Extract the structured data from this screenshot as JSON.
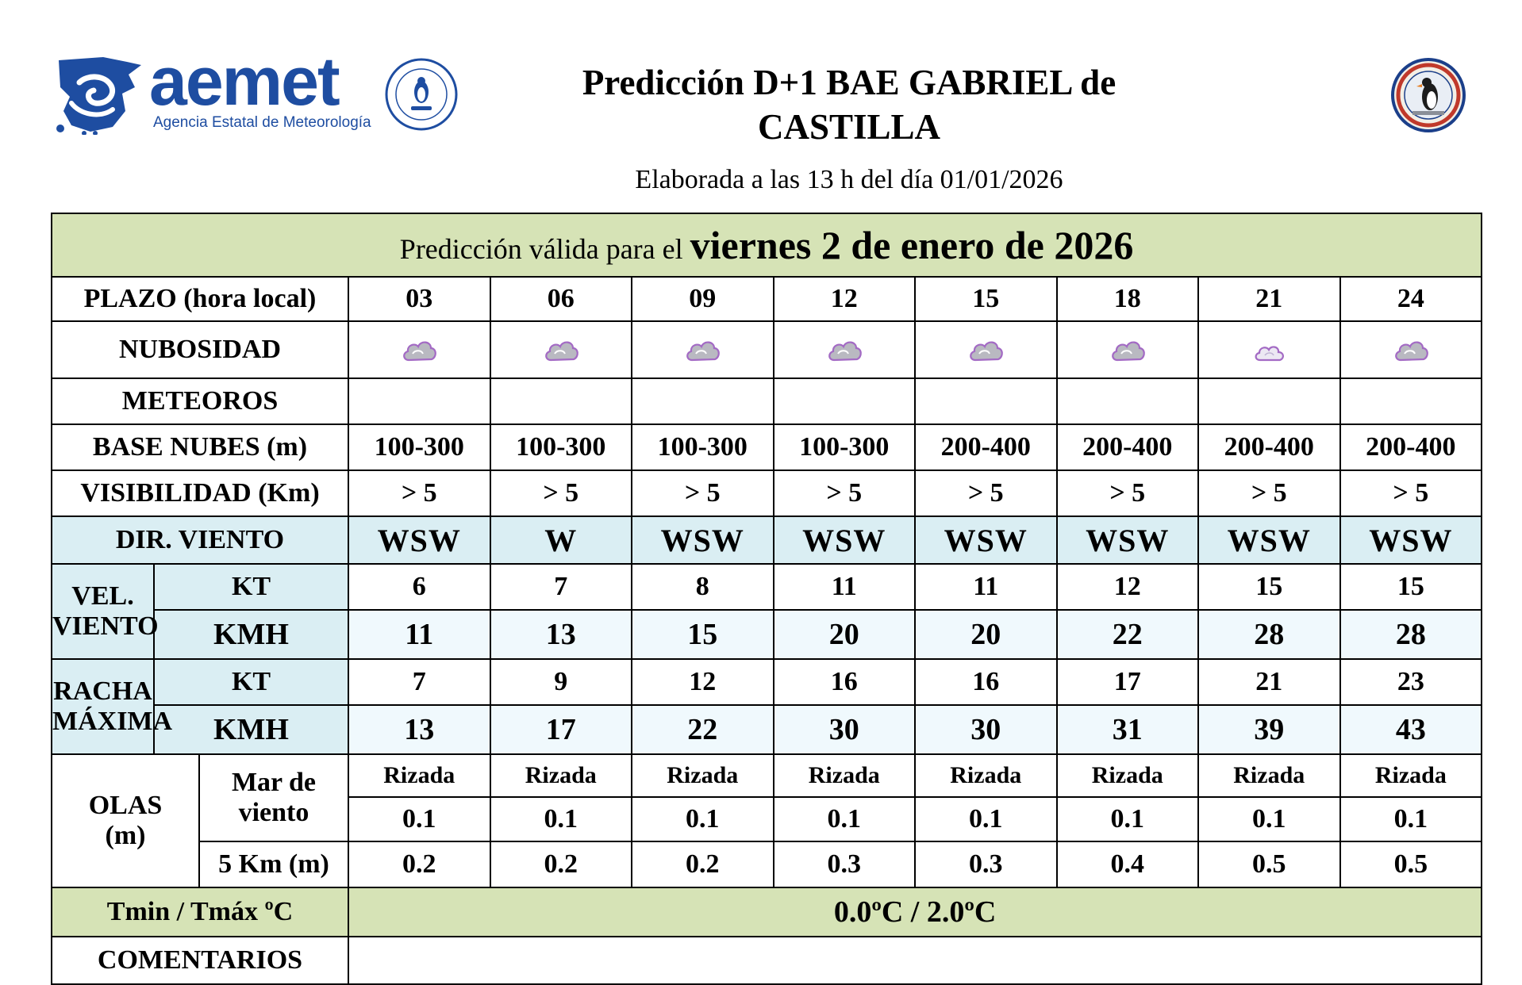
{
  "header": {
    "logo_text": "aemet",
    "logo_subtitle": "Agencia Estatal de Meteorología",
    "title": "Predicción D+1 BAE GABRIEL de CASTILLA",
    "subtitle": "Elaborada a las 13 h del día 01/01/2026"
  },
  "forecast": {
    "valid_prefix": "Predicción válida para el",
    "valid_date": "viernes 2 de enero de 2026",
    "labels": {
      "plazo": "PLAZO (hora local)",
      "nubosidad": "NUBOSIDAD",
      "meteoros": "METEOROS",
      "base_nubes": "BASE NUBES (m)",
      "visibilidad": "VISIBILIDAD (Km)",
      "dir_viento": "DIR. VIENTO",
      "vel_viento_1": "VEL.",
      "vel_viento_2": "VIENTO",
      "racha_1": "RACHA",
      "racha_2": "MÁXIMA",
      "unit_kt": "KT",
      "unit_kmh": "KMH",
      "olas_1": "OLAS",
      "olas_2": "(m)",
      "mar_viento": "Mar de viento",
      "cinco_km": "5 Km (m)",
      "temp": "Tmin / Tmáx ºC",
      "comentarios": "COMENTARIOS"
    },
    "hours": [
      "03",
      "06",
      "09",
      "12",
      "15",
      "18",
      "21",
      "24"
    ],
    "cloud_icons": [
      "cloudy-icon",
      "cloudy-icon",
      "cloudy-icon",
      "cloudy-icon",
      "cloudy-icon",
      "cloudy-icon",
      "partly-cloudy-icon",
      "cloudy-icon"
    ],
    "meteoros": [
      "",
      "",
      "",
      "",
      "",
      "",
      "",
      ""
    ],
    "base_nubes": [
      "100-300",
      "100-300",
      "100-300",
      "100-300",
      "200-400",
      "200-400",
      "200-400",
      "200-400"
    ],
    "visibilidad": [
      "> 5",
      "> 5",
      "> 5",
      "> 5",
      "> 5",
      "> 5",
      "> 5",
      "> 5"
    ],
    "dir_viento": [
      "WSW",
      "W",
      "WSW",
      "WSW",
      "WSW",
      "WSW",
      "WSW",
      "WSW"
    ],
    "vel_kt": [
      "6",
      "7",
      "8",
      "11",
      "11",
      "12",
      "15",
      "15"
    ],
    "vel_kmh": [
      "11",
      "13",
      "15",
      "20",
      "20",
      "22",
      "28",
      "28"
    ],
    "racha_kt": [
      "7",
      "9",
      "12",
      "16",
      "16",
      "17",
      "21",
      "23"
    ],
    "racha_kmh": [
      "13",
      "17",
      "22",
      "30",
      "30",
      "31",
      "39",
      "43"
    ],
    "mar_estado": [
      "Rizada",
      "Rizada",
      "Rizada",
      "Rizada",
      "Rizada",
      "Rizada",
      "Rizada",
      "Rizada"
    ],
    "mar_altura": [
      "0.1",
      "0.1",
      "0.1",
      "0.1",
      "0.1",
      "0.1",
      "0.1",
      "0.1"
    ],
    "olas_5km": [
      "0.2",
      "0.2",
      "0.2",
      "0.3",
      "0.3",
      "0.4",
      "0.5",
      "0.5"
    ],
    "temperatura": "0.0ºC / 2.0ºC",
    "comentarios": ""
  }
}
